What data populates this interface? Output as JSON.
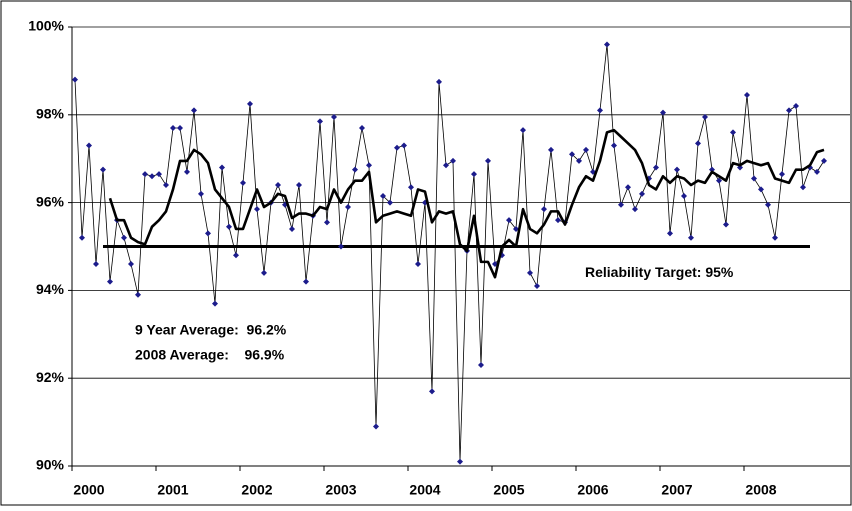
{
  "chart_data": {
    "type": "line",
    "categories": [
      null,
      null,
      "2000",
      null,
      null,
      null,
      null,
      null,
      null,
      null,
      null,
      null,
      null,
      null,
      "2001",
      null,
      null,
      null,
      null,
      null,
      null,
      null,
      null,
      null,
      null,
      null,
      "2002",
      null,
      null,
      null,
      null,
      null,
      null,
      null,
      null,
      null,
      null,
      null,
      "2003",
      null,
      null,
      null,
      null,
      null,
      null,
      null,
      null,
      null,
      null,
      null,
      "2004",
      null,
      null,
      null,
      null,
      null,
      null,
      null,
      null,
      null,
      null,
      null,
      "2005",
      null,
      null,
      null,
      null,
      null,
      null,
      null,
      null,
      null,
      null,
      null,
      "2006",
      null,
      null,
      null,
      null,
      null,
      null,
      null,
      null,
      null,
      null,
      null,
      "2007",
      null,
      null,
      null,
      null,
      null,
      null,
      null,
      null,
      null,
      null,
      null,
      "2008",
      null,
      null,
      null,
      null,
      null,
      null,
      null,
      null,
      null
    ],
    "series": [
      {
        "color": "#1c1c8c",
        "values": [
          98.8,
          95.2,
          97.3,
          94.6,
          96.75,
          94.2,
          95.6,
          95.2,
          94.6,
          93.9,
          96.65,
          96.6,
          96.65,
          96.4,
          97.7,
          97.7,
          96.7,
          98.1,
          96.2,
          95.3,
          93.7,
          96.8,
          95.45,
          94.8,
          96.45,
          98.25,
          95.85,
          94.4,
          96.0,
          96.4,
          95.95,
          95.4,
          96.4,
          94.2,
          95.7,
          97.85,
          95.55,
          97.95,
          95.0,
          95.9,
          96.75,
          97.7,
          96.85,
          90.9,
          96.15,
          96.0,
          97.25,
          97.3,
          96.35,
          94.6,
          96.0,
          91.7,
          98.75,
          96.85,
          96.95,
          90.1,
          94.9,
          96.65,
          92.3,
          96.95,
          94.6,
          94.8,
          95.6,
          95.4,
          97.65,
          94.4,
          94.1,
          95.85,
          97.2,
          95.6,
          95.55,
          97.1,
          96.95,
          97.2,
          96.7,
          98.1,
          99.6,
          97.3,
          95.95,
          96.35,
          95.85,
          96.2,
          96.55,
          96.8,
          98.05,
          95.3,
          96.75,
          96.15,
          95.2,
          97.35,
          97.95,
          96.75,
          96.5,
          95.5,
          97.6,
          96.8,
          98.45,
          96.55,
          96.3,
          95.95,
          95.2,
          96.65,
          98.1,
          98.2,
          96.35,
          96.8,
          96.7,
          96.95
        ]
      },
      {
        "color": "#000000",
        "values": [
          null,
          null,
          null,
          null,
          null,
          96.1,
          95.6,
          95.6,
          95.2,
          95.1,
          95.05,
          95.45,
          95.6,
          95.8,
          96.3,
          96.95,
          96.95,
          97.2,
          97.1,
          96.9,
          96.3,
          96.1,
          95.9,
          95.4,
          95.4,
          95.85,
          96.3,
          95.9,
          96.0,
          96.2,
          96.15,
          95.65,
          95.75,
          95.75,
          95.7,
          95.9,
          95.85,
          96.3,
          96.0,
          96.3,
          96.5,
          96.5,
          96.7,
          95.55,
          95.7,
          95.75,
          95.8,
          95.75,
          95.7,
          96.3,
          96.25,
          95.55,
          95.8,
          95.75,
          95.8,
          95.05,
          94.9,
          95.7,
          94.65,
          94.65,
          94.3,
          95.0,
          95.15,
          95.0,
          95.85,
          95.4,
          95.3,
          95.5,
          95.8,
          95.8,
          95.5,
          95.95,
          96.35,
          96.6,
          96.5,
          96.95,
          97.6,
          97.65,
          97.5,
          97.35,
          97.2,
          96.9,
          96.4,
          96.3,
          96.6,
          96.45,
          96.6,
          96.55,
          96.4,
          96.5,
          96.45,
          96.7,
          96.6,
          96.5,
          96.9,
          96.85,
          96.95,
          96.9,
          96.85,
          96.9,
          96.55,
          96.5,
          96.45,
          96.75,
          96.75,
          96.85,
          97.15,
          97.2
        ]
      }
    ],
    "target": {
      "value": 95,
      "label": "Reliability Target: 95%"
    },
    "annotations": [
      "9 Year Average:  96.2%",
      "2008 Average:    96.9%"
    ],
    "ylim": [
      90,
      100
    ],
    "yticks": [
      {
        "value": 90,
        "label": "90%"
      },
      {
        "value": 92,
        "label": "92%"
      },
      {
        "value": 94,
        "label": "94%"
      },
      {
        "value": 96,
        "label": "96%"
      },
      {
        "value": 98,
        "label": "98%"
      },
      {
        "value": 100,
        "label": "100%"
      }
    ],
    "grid": true
  }
}
